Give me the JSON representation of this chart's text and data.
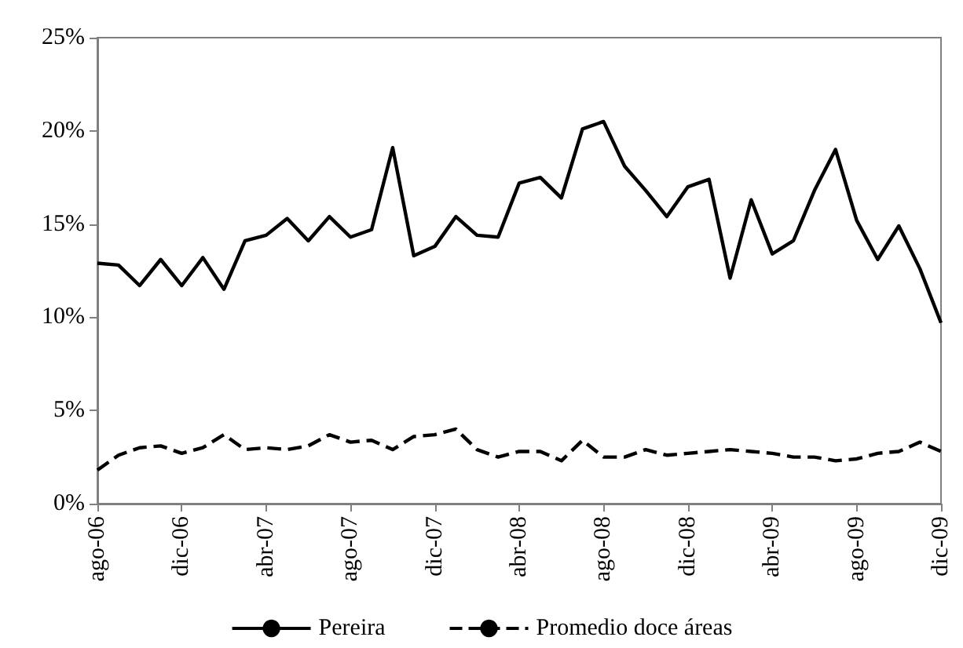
{
  "chart_data": {
    "type": "line",
    "categories": [
      "ago-06",
      null,
      null,
      null,
      "dic-06",
      null,
      null,
      null,
      "abr-07",
      null,
      null,
      null,
      "ago-07",
      null,
      null,
      null,
      "dic-07",
      null,
      null,
      null,
      "abr-08",
      null,
      null,
      null,
      "ago-08",
      null,
      null,
      null,
      "dic-08",
      null,
      null,
      null,
      "abr-09",
      null,
      null,
      null,
      "ago-09",
      null,
      null,
      null,
      "dic-09"
    ],
    "series": [
      {
        "name": "Pereira",
        "color": "#000000",
        "line_style": "solid",
        "values": [
          12.9,
          12.8,
          11.7,
          13.1,
          11.7,
          13.2,
          11.5,
          14.1,
          14.4,
          15.3,
          14.1,
          15.4,
          14.3,
          14.7,
          19.1,
          13.3,
          13.8,
          15.4,
          14.4,
          14.3,
          17.2,
          17.5,
          16.4,
          20.1,
          20.5,
          18.1,
          16.8,
          15.4,
          17.0,
          17.4,
          12.1,
          16.3,
          13.4,
          14.1,
          16.8,
          19.0,
          15.2,
          13.1,
          14.9,
          12.6,
          9.7
        ]
      },
      {
        "name": "Promedio doce áreas",
        "color": "#000000",
        "line_style": "dashed",
        "values": [
          1.8,
          2.6,
          3.0,
          3.1,
          2.7,
          3.0,
          3.7,
          2.9,
          3.0,
          2.9,
          3.1,
          3.7,
          3.3,
          3.4,
          2.9,
          3.6,
          3.7,
          4.0,
          2.9,
          2.5,
          2.8,
          2.8,
          2.3,
          3.4,
          2.5,
          2.5,
          2.9,
          2.6,
          2.7,
          2.8,
          2.9,
          2.8,
          2.7,
          2.5,
          2.5,
          2.3,
          2.4,
          2.7,
          2.8,
          3.3,
          2.8
        ]
      }
    ],
    "ylim": [
      0,
      25
    ],
    "yticks": [
      {
        "value": 0,
        "label": "0%"
      },
      {
        "value": 5,
        "label": "5%"
      },
      {
        "value": 10,
        "label": "10%"
      },
      {
        "value": 15,
        "label": "15%"
      },
      {
        "value": 20,
        "label": "20%"
      },
      {
        "value": 25,
        "label": "25%"
      }
    ],
    "grid": false,
    "legend": "bottom",
    "marker": "none"
  }
}
